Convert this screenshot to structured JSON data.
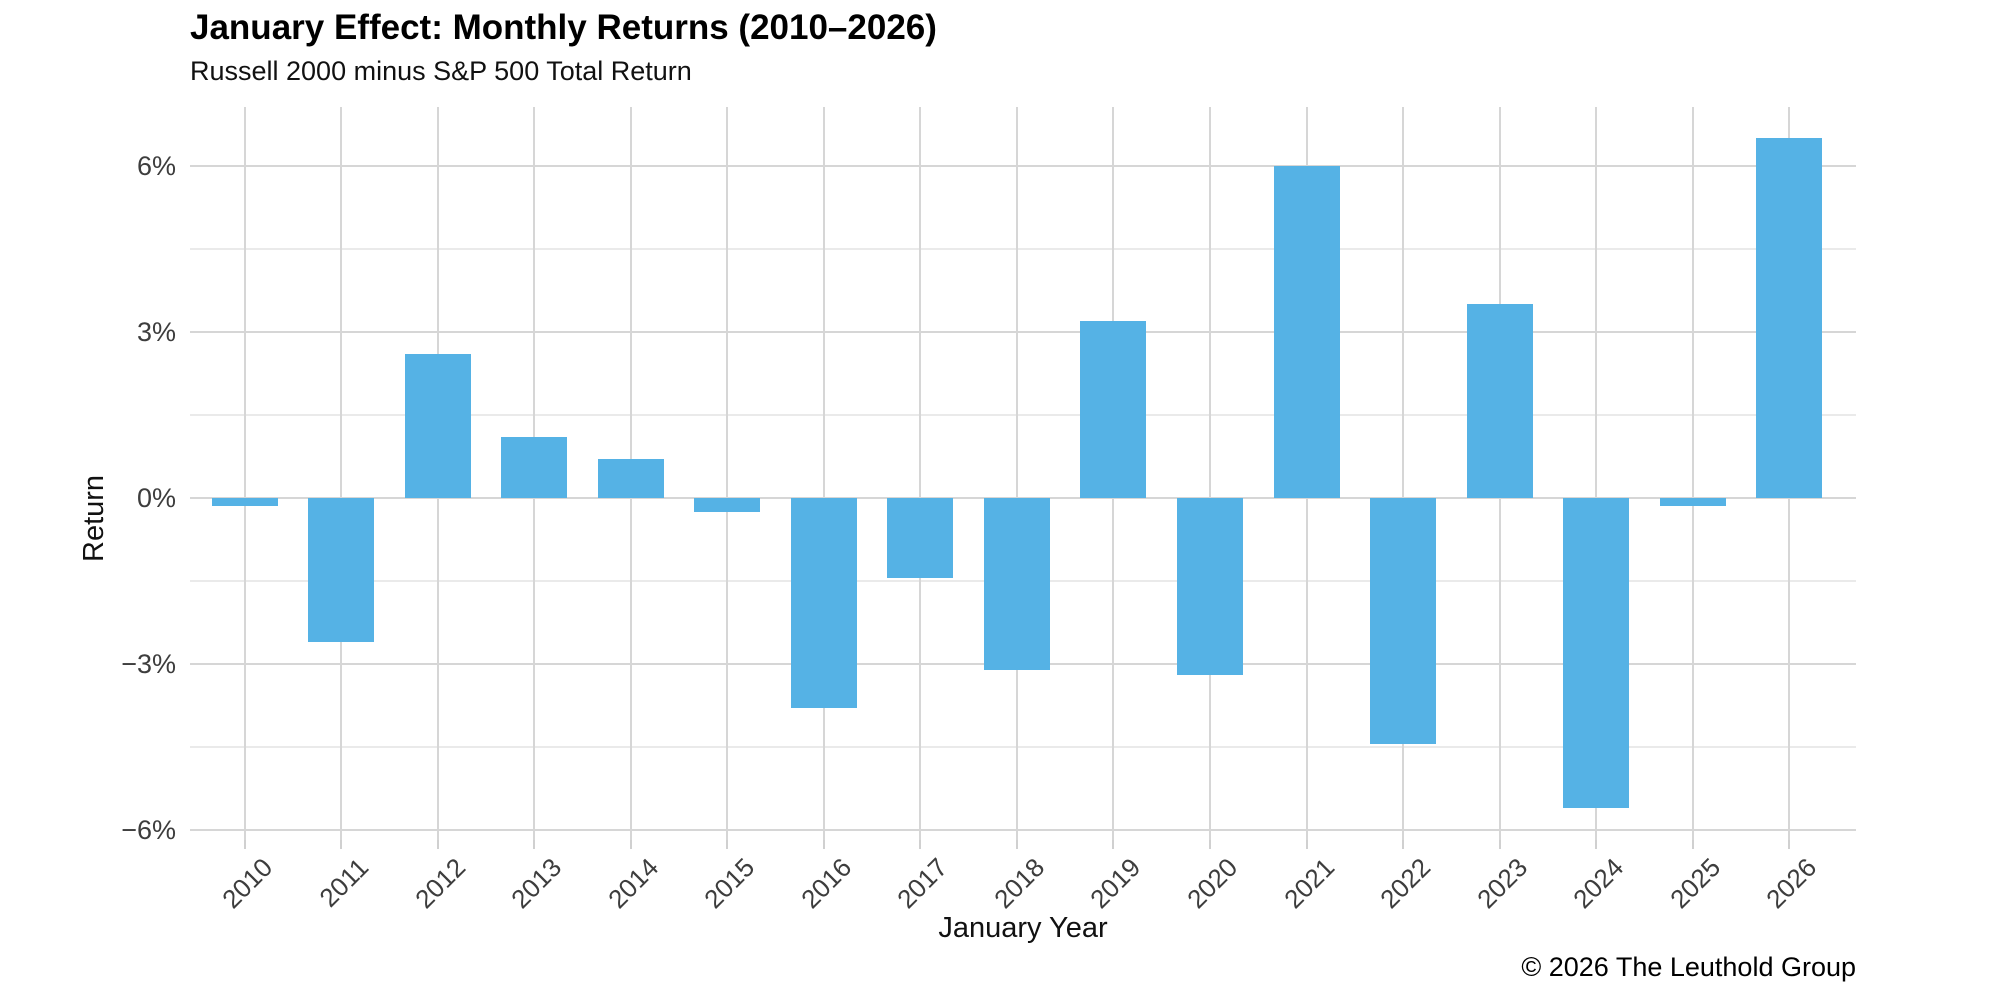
{
  "title": "January Effect: Monthly Returns (2010–2026)",
  "subtitle": "Russell 2000 minus S&P 500 Total Return",
  "footer": "© 2026 The Leuthold Group",
  "colors": {
    "bar": "#55B2E5",
    "grid_major": "#D6D6D6",
    "grid_minor": "#EAEAEA",
    "tick_text": "#3D3D3D",
    "title_text": "#000000"
  },
  "chart_data": {
    "type": "bar",
    "title": "January Effect: Monthly Returns (2010–2026)",
    "subtitle": "Russell 2000 minus S&P 500 Total Return",
    "xlabel": "January Year",
    "ylabel": "Return",
    "categories": [
      "2010",
      "2011",
      "2012",
      "2013",
      "2014",
      "2015",
      "2016",
      "2017",
      "2018",
      "2019",
      "2020",
      "2021",
      "2022",
      "2023",
      "2024",
      "2025",
      "2026"
    ],
    "values": [
      -0.15,
      -2.6,
      2.6,
      1.1,
      0.7,
      -0.25,
      -3.8,
      -1.45,
      -3.1,
      3.2,
      -3.2,
      6.0,
      -4.45,
      3.5,
      -5.6,
      -0.15,
      6.5
    ],
    "bar_color": "#55B2E5",
    "y_ticks": [
      {
        "value": 6,
        "label": "6%"
      },
      {
        "value": 3,
        "label": "3%"
      },
      {
        "value": 0,
        "label": "0%"
      },
      {
        "value": -3,
        "label": "−3%"
      },
      {
        "value": -6,
        "label": "−6%"
      }
    ],
    "y_minor_ticks": [
      4.5,
      1.5,
      -1.5,
      -4.5
    ],
    "ylim": [
      -6.2,
      7.1
    ],
    "grid": true,
    "legend": false
  }
}
